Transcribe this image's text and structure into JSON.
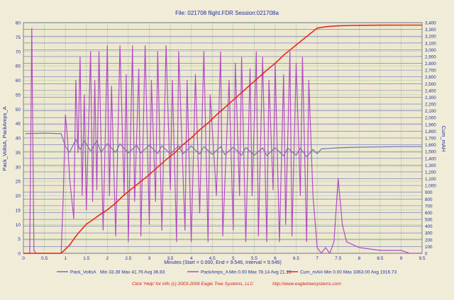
{
  "chart_data": {
    "type": "line",
    "title": "File: 021708 flight.FDR   Session:021708a",
    "xlabel": "Minutes (Start = 0.000,  End = 9.546,  Interval = 9.546)",
    "ylabel_left": "Pack_VoltsA, PackAmps_A",
    "ylabel_right": "Cum_mAH",
    "xlim": [
      0,
      9.5
    ],
    "ylim_left": [
      0,
      80
    ],
    "ylim_right": [
      0,
      3400
    ],
    "x_ticks": [
      "0",
      "0.5",
      "1",
      "1.5",
      "2",
      "2.5",
      "3",
      "3.5",
      "4",
      "4.5",
      "5",
      "5.5",
      "6",
      "6.5",
      "7",
      "7.5",
      "8",
      "8.5",
      "9",
      "9.5"
    ],
    "y_left_ticks": [
      "0",
      "5",
      "10",
      "15",
      "20",
      "25",
      "30",
      "35",
      "40",
      "45",
      "50",
      "55",
      "60",
      "65",
      "70",
      "75",
      "80"
    ],
    "y_right_ticks": [
      "0",
      "100",
      "200",
      "300",
      "400",
      "500",
      "600",
      "700",
      "800",
      "900",
      "1,000",
      "1,100",
      "1,200",
      "1,300",
      "1,400",
      "1,500",
      "1,600",
      "1,700",
      "1,800",
      "1,900",
      "2,000",
      "2,100",
      "2,200",
      "2,300",
      "2,400",
      "2,500",
      "2,600",
      "2,700",
      "2,800",
      "2,900",
      "3,000",
      "3,100",
      "3,200",
      "3,300",
      "3,400"
    ],
    "grid": true,
    "legend_position": "bottom",
    "series": [
      {
        "name": "Pack_VoltsA",
        "axis": "left",
        "color": "#6878b4",
        "stats": "Min 33.39   Max 41.76   Avg 36.83",
        "x": [
          0.05,
          0.5,
          0.9,
          1.0,
          1.1,
          1.25,
          1.35,
          1.45,
          1.6,
          1.75,
          1.85,
          2.0,
          2.2,
          2.3,
          2.5,
          2.7,
          2.8,
          3.0,
          3.2,
          3.3,
          3.5,
          3.7,
          3.8,
          4.0,
          4.2,
          4.3,
          4.5,
          4.7,
          4.8,
          5.0,
          5.2,
          5.3,
          5.5,
          5.7,
          5.8,
          6.0,
          6.2,
          6.3,
          6.5,
          6.6,
          6.75,
          6.9,
          7.0,
          7.1,
          7.3,
          7.5,
          8.0,
          9.0,
          9.5
        ],
        "y": [
          41.5,
          41.7,
          41.5,
          37.0,
          35.0,
          39.5,
          36.0,
          39.0,
          35.5,
          39.0,
          35.0,
          38.0,
          35.0,
          38.0,
          34.8,
          37.5,
          34.8,
          37.5,
          34.6,
          37.3,
          34.5,
          37.3,
          34.5,
          37.2,
          34.4,
          37.0,
          34.3,
          37.0,
          34.2,
          36.8,
          34.0,
          36.7,
          34.0,
          36.6,
          33.9,
          36.6,
          33.8,
          36.5,
          34.0,
          36.5,
          33.5,
          36.0,
          34.5,
          36.2,
          36.4,
          36.6,
          36.8,
          37.0,
          37.0
        ]
      },
      {
        "name": "PackAmps_A",
        "axis": "left",
        "color": "#b44cc4",
        "stats": "Min 0.00   Max 78.14   Avg 21.15",
        "x": [
          0,
          0.15,
          0.2,
          0.25,
          0.3,
          0.9,
          0.95,
          1.0,
          1.05,
          1.1,
          1.2,
          1.25,
          1.3,
          1.35,
          1.4,
          1.45,
          1.5,
          1.6,
          1.65,
          1.7,
          1.75,
          1.8,
          1.9,
          2.0,
          2.05,
          2.1,
          2.2,
          2.3,
          2.4,
          2.45,
          2.5,
          2.6,
          2.65,
          2.75,
          2.8,
          2.9,
          3.0,
          3.05,
          3.15,
          3.2,
          3.3,
          3.4,
          3.5,
          3.55,
          3.65,
          3.7,
          3.85,
          3.9,
          4.0,
          4.1,
          4.2,
          4.3,
          4.4,
          4.45,
          4.6,
          4.7,
          4.75,
          4.9,
          5.0,
          5.05,
          5.15,
          5.2,
          5.3,
          5.4,
          5.45,
          5.55,
          5.6,
          5.7,
          5.8,
          5.85,
          5.95,
          6.0,
          6.1,
          6.2,
          6.25,
          6.35,
          6.4,
          6.5,
          6.6,
          6.65,
          6.75,
          6.8,
          6.9,
          7.0,
          7.1,
          7.2,
          7.3,
          7.4,
          7.5,
          7.6,
          7.7,
          8.0,
          8.5,
          9.0,
          9.2,
          9.5
        ],
        "y": [
          0,
          0,
          78,
          1,
          0,
          0,
          20,
          48,
          40,
          26,
          12,
          60,
          35,
          68,
          20,
          55,
          15,
          70,
          18,
          60,
          22,
          70,
          8,
          72,
          20,
          58,
          6,
          72,
          20,
          62,
          4,
          72,
          18,
          64,
          6,
          72,
          10,
          60,
          18,
          70,
          8,
          72,
          22,
          60,
          4,
          70,
          8,
          60,
          4,
          62,
          14,
          70,
          4,
          55,
          20,
          70,
          6,
          60,
          8,
          66,
          20,
          68,
          4,
          64,
          20,
          70,
          6,
          68,
          4,
          60,
          22,
          66,
          4,
          62,
          10,
          70,
          6,
          66,
          20,
          68,
          4,
          60,
          20,
          2,
          0,
          2,
          0,
          4,
          26,
          10,
          4,
          2,
          1,
          1,
          0,
          0
        ]
      },
      {
        "name": "Cum_mAH",
        "axis": "right",
        "color": "#e8281e",
        "stats": "Min 0.00   Max 3363.00   Avg 1916.73",
        "x": [
          0,
          0.9,
          1.0,
          1.1,
          1.2,
          1.3,
          1.4,
          1.5,
          1.6,
          1.8,
          2.0,
          2.2,
          2.4,
          2.6,
          2.8,
          3.0,
          3.2,
          3.4,
          3.6,
          3.8,
          4.0,
          4.2,
          4.4,
          4.6,
          4.8,
          5.0,
          5.2,
          5.4,
          5.6,
          5.8,
          6.0,
          6.2,
          6.4,
          6.6,
          6.8,
          7.0,
          7.2,
          7.4,
          7.6,
          7.8,
          8.0,
          8.5,
          9.0,
          9.5
        ],
        "y": [
          0,
          0,
          60,
          120,
          210,
          290,
          360,
          430,
          470,
          560,
          640,
          740,
          860,
          960,
          1060,
          1160,
          1270,
          1380,
          1480,
          1600,
          1700,
          1820,
          1920,
          2040,
          2150,
          2260,
          2370,
          2480,
          2590,
          2700,
          2800,
          2920,
          3020,
          3120,
          3220,
          3320,
          3340,
          3350,
          3355,
          3358,
          3360,
          3362,
          3363,
          3363
        ]
      }
    ]
  },
  "legend": [
    {
      "label": "Pack_VoltsA",
      "stats": "Min 33.39   Max 41.76   Avg 36.83",
      "color": "#6878b4"
    },
    {
      "label": "PackAmps_A",
      "stats": "Min 0.00   Max 78.14   Avg 21.15",
      "color": "#b44cc4"
    },
    {
      "label": "Cum_mAH",
      "stats": "Min 0.00   Max 3363.00   Avg 1916.73",
      "color": "#e8281e"
    }
  ],
  "footer": {
    "help_text": "Click 'Help' for info  (c) 2003-2006 Eagle Tree Systems, LLC",
    "url": "http://www.eagletreesystems.com"
  }
}
